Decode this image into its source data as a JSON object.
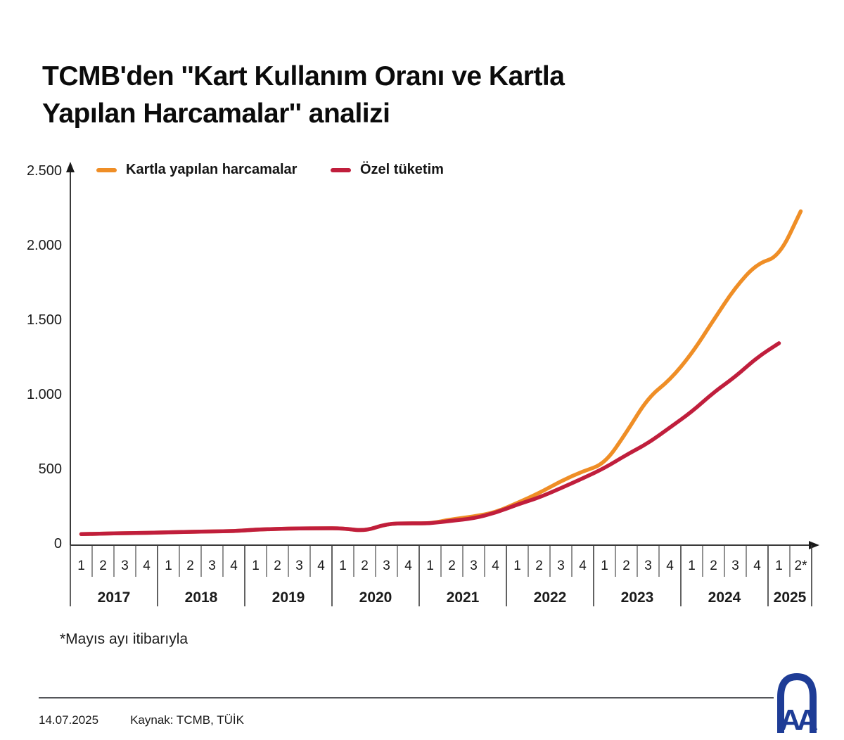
{
  "page": {
    "title_line1": "TCMB'den ''Kart Kullanım Oranı ve Kartla",
    "title_line2": "Yapılan Harcamalar'' analizi",
    "footnote": "*Mayıs ayı itibarıyla",
    "footer": {
      "date": "14.07.2025",
      "source": "Kaynak: TCMB, TÜİK"
    },
    "logo": {
      "name": "Anadolu Ajansı AA logo",
      "text": "AA",
      "color": "#1E3C96"
    }
  },
  "chart_data": {
    "type": "line",
    "title": "Kart kullanım oranı ve kartla yapılan harcamalar",
    "xlabel": "",
    "ylabel": "",
    "ylim": [
      0,
      2500
    ],
    "grid": false,
    "legend_position": "top-left",
    "axis_color": "#3a3a3a",
    "y_ticks": [
      {
        "value": 0,
        "label": "0"
      },
      {
        "value": 500,
        "label": "500"
      },
      {
        "value": 1000,
        "label": "1.000"
      },
      {
        "value": 1500,
        "label": "1.500"
      },
      {
        "value": 2000,
        "label": "2.000"
      },
      {
        "value": 2500,
        "label": "2.500"
      }
    ],
    "years": [
      {
        "label": "2017",
        "quarters": [
          "1",
          "2",
          "3",
          "4"
        ]
      },
      {
        "label": "2018",
        "quarters": [
          "1",
          "2",
          "3",
          "4"
        ]
      },
      {
        "label": "2019",
        "quarters": [
          "1",
          "2",
          "3",
          "4"
        ]
      },
      {
        "label": "2020",
        "quarters": [
          "1",
          "2",
          "3",
          "4"
        ]
      },
      {
        "label": "2021",
        "quarters": [
          "1",
          "2",
          "3",
          "4"
        ]
      },
      {
        "label": "2022",
        "quarters": [
          "1",
          "2",
          "3",
          "4"
        ]
      },
      {
        "label": "2023",
        "quarters": [
          "1",
          "2",
          "3",
          "4"
        ]
      },
      {
        "label": "2024",
        "quarters": [
          "1",
          "2",
          "3",
          "4"
        ]
      },
      {
        "label": "2025",
        "quarters": [
          "1",
          "2*"
        ]
      }
    ],
    "series": [
      {
        "name": "Kartla yapılan harcamalar",
        "color": "#EF8E26",
        "values": [
          60,
          63,
          66,
          68,
          72,
          75,
          78,
          80,
          90,
          95,
          98,
          99,
          99,
          80,
          129,
          133,
          131,
          160,
          178,
          206,
          269,
          335,
          415,
          481,
          530,
          740,
          976,
          1094,
          1270,
          1495,
          1715,
          1875,
          1920,
          2225
        ]
      },
      {
        "name": "Özel tüketim",
        "color": "#C01E3C",
        "values": [
          60,
          63,
          66,
          68,
          72,
          75,
          78,
          80,
          90,
          95,
          98,
          99,
          99,
          80,
          129,
          133,
          131,
          150,
          165,
          203,
          258,
          305,
          368,
          434,
          503,
          591,
          670,
          775,
          880,
          1010,
          1115,
          1245,
          1340,
          null
        ]
      }
    ]
  }
}
